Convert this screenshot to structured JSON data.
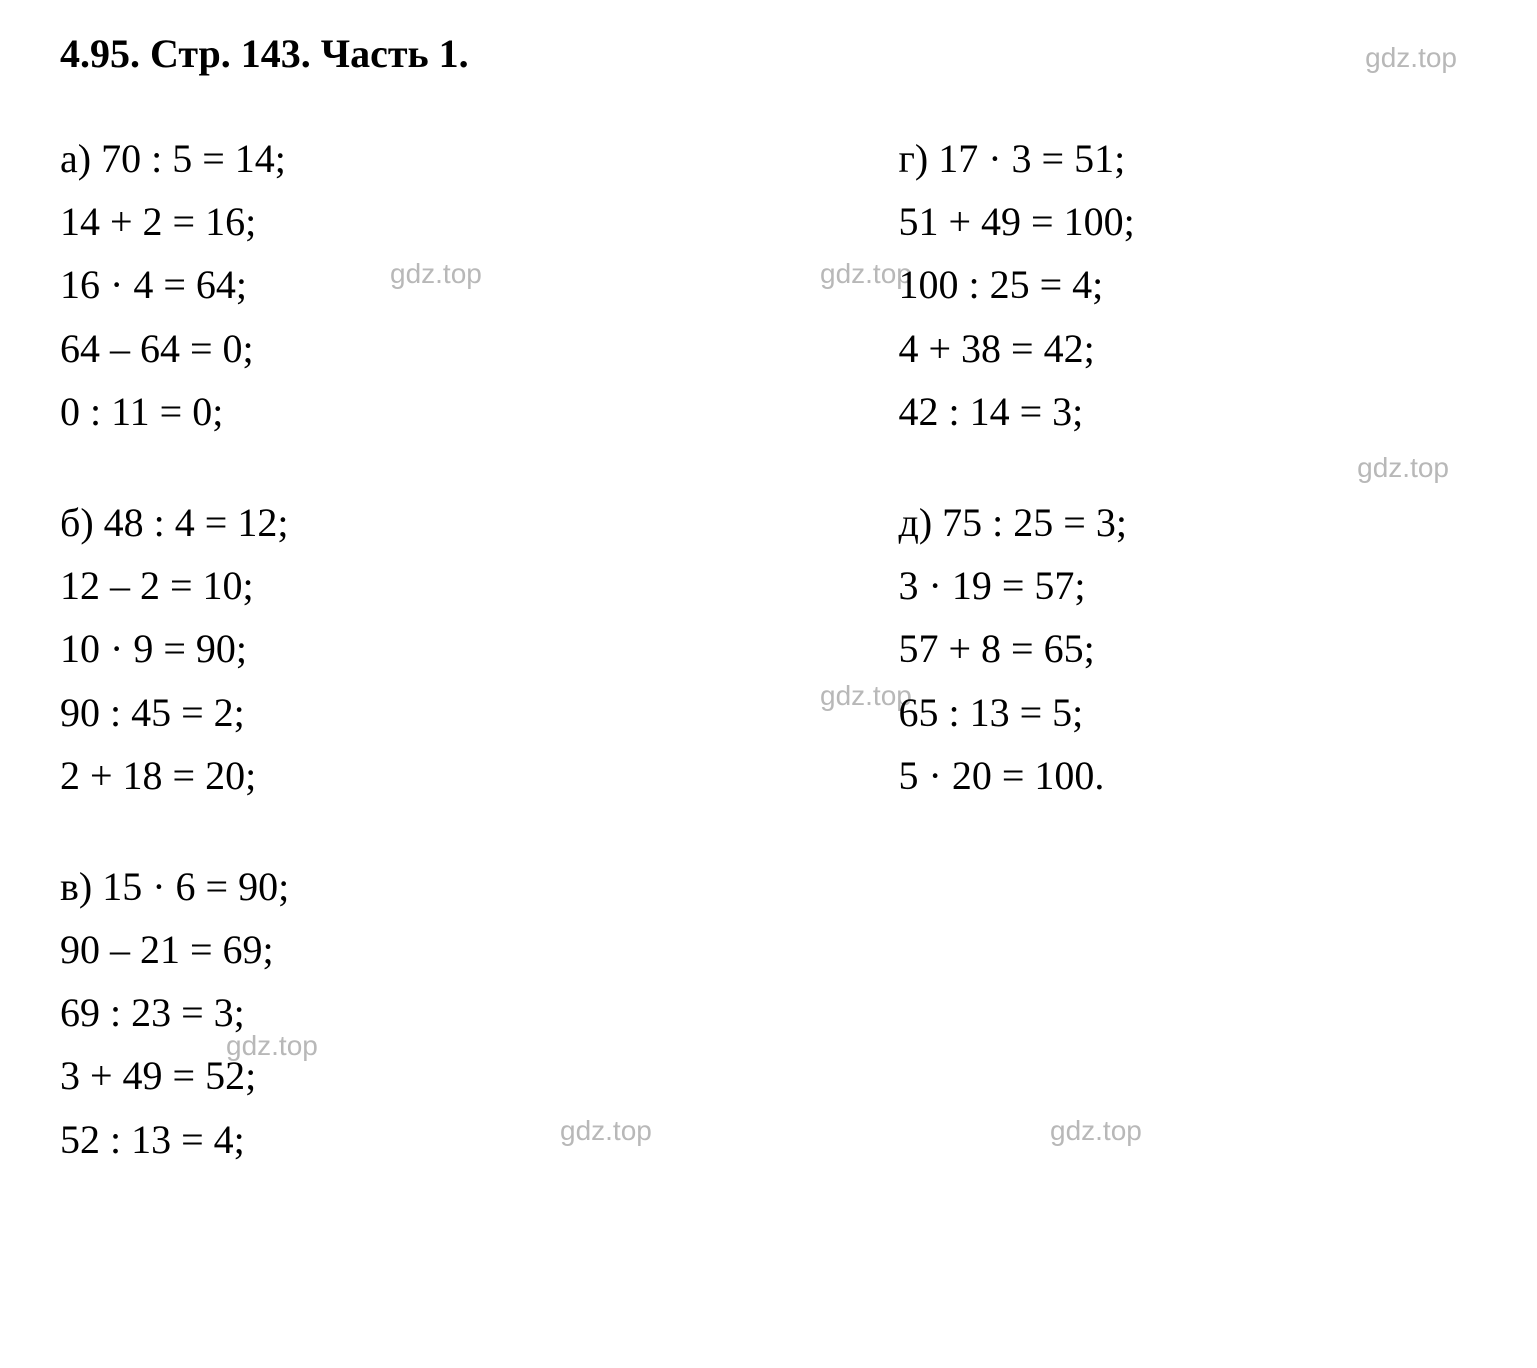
{
  "header": {
    "title": "4.95. Стр. 143. Часть 1.",
    "watermark_text": "gdz.top"
  },
  "colors": {
    "text": "#000000",
    "watermark": "#b8b8b8",
    "background": "#ffffff"
  },
  "typography": {
    "title_fontsize": 40,
    "title_weight": "bold",
    "body_fontsize": 40,
    "watermark_fontsize": 28,
    "font_family": "Times New Roman"
  },
  "problems": {
    "a": {
      "label": "а)",
      "lines": [
        "70 : 5  =  14;",
        "14  +  2  =  16;",
        "16 · 4  =  64;",
        "64 – 64  =  0;",
        "0 : 11  =  0;"
      ]
    },
    "b": {
      "label": "б)",
      "lines": [
        "48 : 4  =  12;",
        "12 – 2  =  10;",
        "10 · 9  =  90;",
        "90 : 45  =  2;",
        "2  +  18  =  20;"
      ]
    },
    "v": {
      "label": "в)",
      "lines": [
        "15 · 6  =  90;",
        "90 – 21  =  69;",
        "69 : 23  =  3;",
        "3  +  49  =  52;",
        "52 : 13  =  4;"
      ]
    },
    "g": {
      "label": "г)",
      "lines": [
        "17 · 3  =  51;",
        "51  +  49  =  100;",
        "100 : 25  =  4;",
        "4  +  38  =  42;",
        "42 : 14  =  3;"
      ]
    },
    "d": {
      "label": "д)",
      "lines": [
        "75 : 25  =  3;",
        "3 · 19  =  57;",
        "57  +  8  =  65;",
        "65 : 13  =  5;",
        "5 · 20  =  100."
      ]
    }
  }
}
